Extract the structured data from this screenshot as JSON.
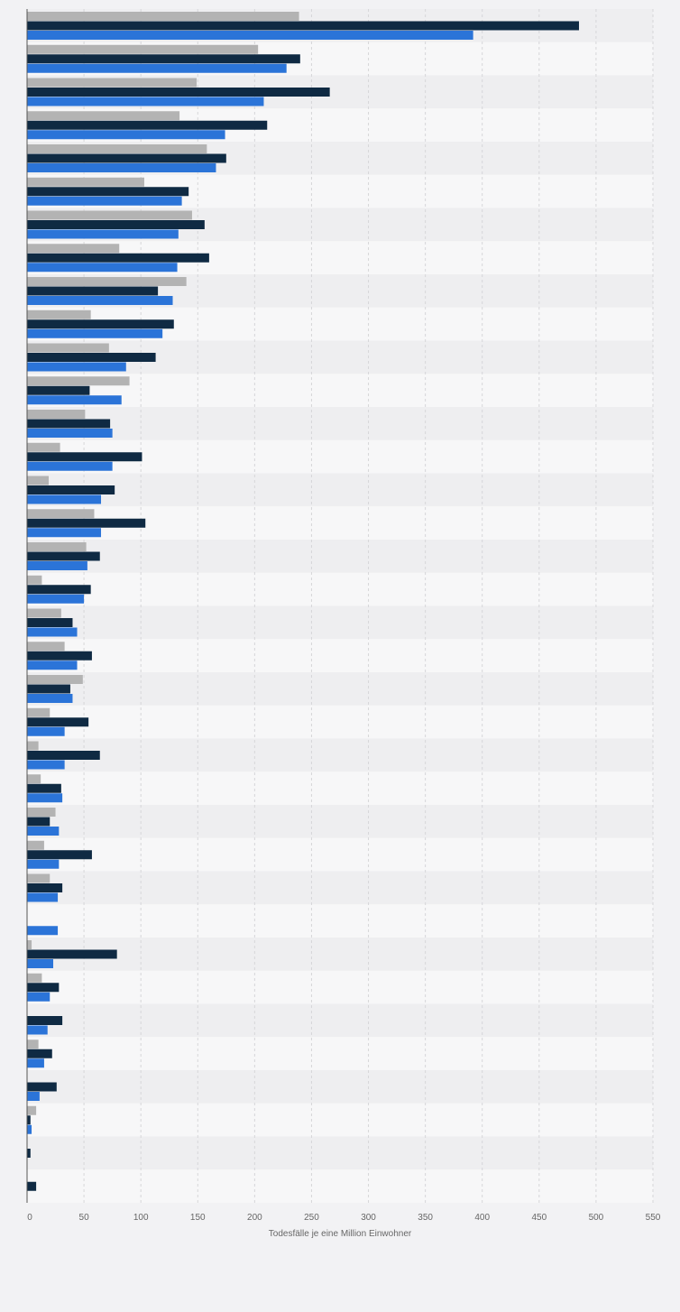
{
  "chart_data": {
    "type": "bar",
    "orientation": "horizontal",
    "xlabel": "Todesfälle je eine Million Einwohner",
    "xlim": [
      0,
      550
    ],
    "xticks": [
      0,
      50,
      100,
      150,
      200,
      250,
      300,
      350,
      400,
      450,
      500,
      550
    ],
    "grid": true,
    "legend": "none",
    "series": [
      {
        "color": "#b3b3b3",
        "values": [
          239,
          203,
          149,
          134,
          158,
          103,
          145,
          81,
          140,
          56,
          72,
          90,
          51,
          29,
          19,
          59,
          52,
          13,
          30,
          33,
          49,
          20,
          10,
          12,
          25,
          15,
          20,
          0,
          4,
          13,
          0,
          10,
          0,
          8,
          0,
          0
        ]
      },
      {
        "color": "#0f2a43",
        "values": [
          485,
          240,
          266,
          211,
          175,
          142,
          156,
          160,
          115,
          129,
          113,
          55,
          73,
          101,
          77,
          104,
          64,
          56,
          40,
          57,
          38,
          54,
          64,
          30,
          20,
          57,
          31,
          0,
          79,
          28,
          31,
          22,
          26,
          3,
          3,
          8
        ]
      },
      {
        "color": "#2b74d8",
        "values": [
          392,
          228,
          208,
          174,
          166,
          136,
          133,
          132,
          128,
          119,
          87,
          83,
          75,
          75,
          65,
          65,
          53,
          50,
          44,
          44,
          40,
          33,
          33,
          31,
          28,
          28,
          27,
          27,
          23,
          20,
          18,
          15,
          11,
          4,
          0,
          0
        ]
      }
    ]
  },
  "colors": {
    "background": "#f2f2f4",
    "band_light": "#f7f7f8",
    "band_dark": "#eeeef0",
    "grid": "#d6d6d9",
    "axis": "#555555",
    "tick_label": "#666666"
  }
}
